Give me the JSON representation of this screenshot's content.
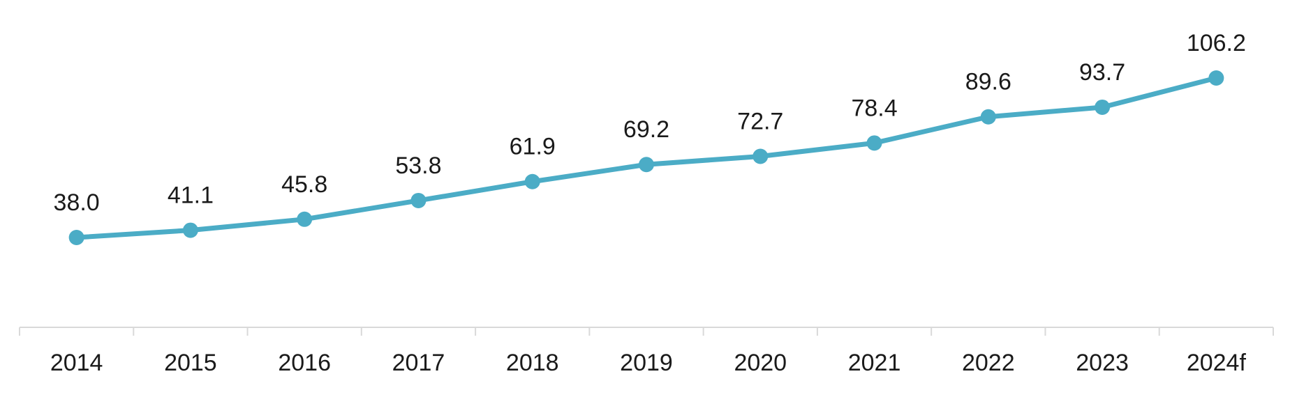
{
  "chart_data": {
    "type": "line",
    "categories": [
      "2014",
      "2015",
      "2016",
      "2017",
      "2018",
      "2019",
      "2020",
      "2021",
      "2022",
      "2023",
      "2024f"
    ],
    "series": [
      {
        "values": [
          38.0,
          41.1,
          45.8,
          53.8,
          61.9,
          69.2,
          72.7,
          78.4,
          89.6,
          93.7,
          106.2
        ],
        "labels": [
          "38.0",
          "41.1",
          "45.8",
          "53.8",
          "61.9",
          "69.2",
          "72.7",
          "78.4",
          "89.6",
          "93.7",
          "106.2"
        ],
        "color": "#4bacc6"
      }
    ],
    "title": "",
    "xlabel": "",
    "ylabel": "",
    "ylim": [
      -0.5,
      107.5
    ],
    "grid": false,
    "legend": "none",
    "axis_color": "#d9d9d9",
    "text_color": "#1a1a1a"
  }
}
